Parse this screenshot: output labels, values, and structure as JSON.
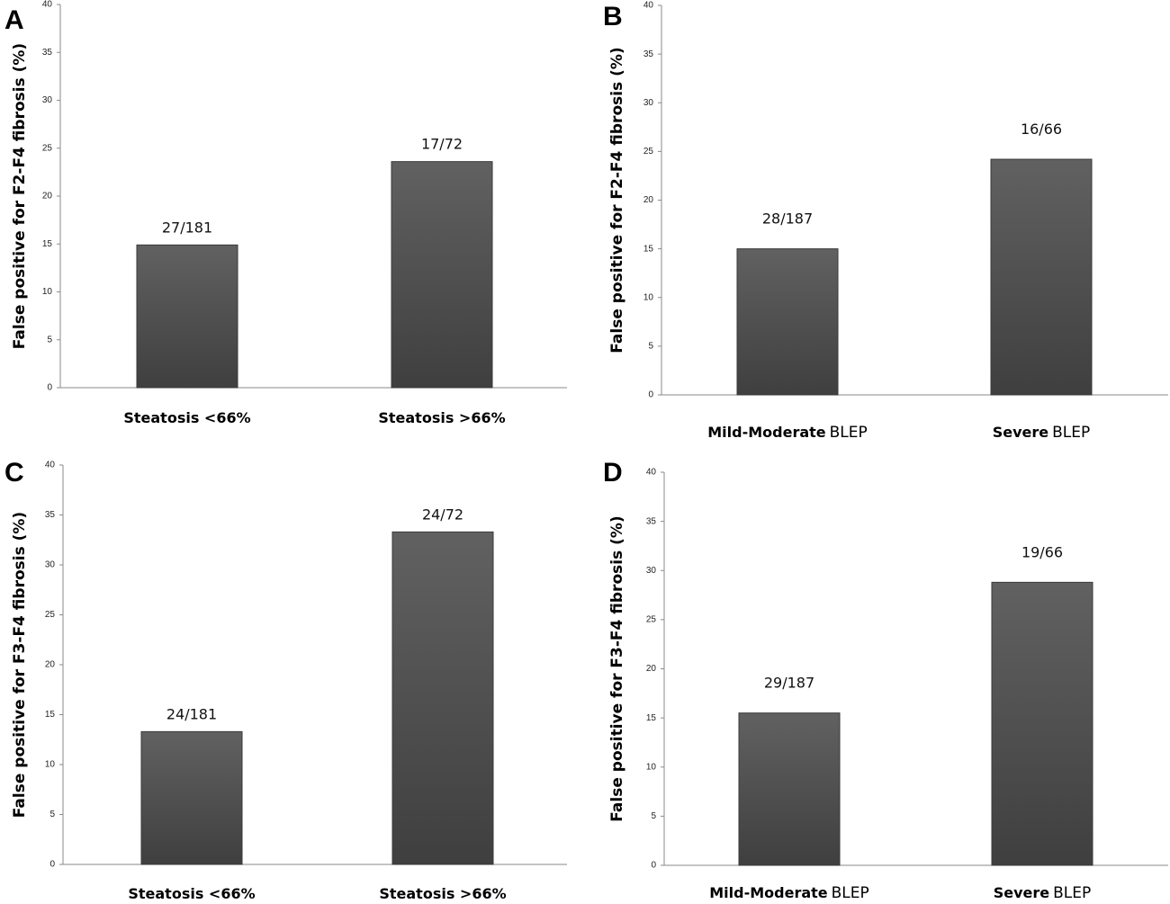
{
  "chart_data": [
    {
      "type": "bar",
      "panel": "A",
      "ylabel": "False positive for F2-F4 fibrosis (%)",
      "ylim": [
        0,
        40
      ],
      "yticks": [
        0,
        5,
        10,
        15,
        20,
        25,
        30,
        35,
        40
      ],
      "categories": [
        {
          "bold": "Steatosis <66%",
          "normal": ""
        },
        {
          "bold": "Steatosis >66%",
          "normal": ""
        }
      ],
      "values": [
        14.9,
        23.6
      ],
      "data_labels": [
        "27/181",
        "17/72"
      ],
      "grid": false,
      "legend": "none"
    },
    {
      "type": "bar",
      "panel": "B",
      "ylabel": "False positive for F2-F4 fibrosis (%)",
      "ylim": [
        0,
        40
      ],
      "yticks": [
        0,
        5,
        10,
        15,
        20,
        25,
        30,
        35,
        40
      ],
      "categories": [
        {
          "bold": "Mild-Moderate",
          "normal": "BLEP"
        },
        {
          "bold": "Severe",
          "normal": "BLEP"
        }
      ],
      "values": [
        15.0,
        24.2
      ],
      "data_labels": [
        "28/187",
        "16/66"
      ],
      "grid": false,
      "legend": "none"
    },
    {
      "type": "bar",
      "panel": "C",
      "ylabel": "False positive for F3-F4 fibrosis (%)",
      "ylim": [
        0,
        40
      ],
      "yticks": [
        0,
        5,
        10,
        15,
        20,
        25,
        30,
        35,
        40
      ],
      "categories": [
        {
          "bold": "Steatosis <66%",
          "normal": ""
        },
        {
          "bold": "Steatosis >66%",
          "normal": ""
        }
      ],
      "values": [
        13.3,
        33.3
      ],
      "data_labels": [
        "24/181",
        "24/72"
      ],
      "grid": false,
      "legend": "none"
    },
    {
      "type": "bar",
      "panel": "D",
      "ylabel": "False positive for F3-F4 fibrosis (%)",
      "ylim": [
        0,
        40
      ],
      "yticks": [
        0,
        5,
        10,
        15,
        20,
        25,
        30,
        35,
        40
      ],
      "categories": [
        {
          "bold": "Mild-Moderate",
          "normal": "BLEP"
        },
        {
          "bold": "Severe",
          "normal": "BLEP"
        }
      ],
      "values": [
        15.5,
        28.8
      ],
      "data_labels": [
        "29/187",
        "19/66"
      ],
      "grid": false,
      "legend": "none"
    }
  ],
  "colors": {
    "bar_light": "#616161",
    "bar_dark": "#3f3f3f",
    "axis": "#8a8a8a"
  }
}
